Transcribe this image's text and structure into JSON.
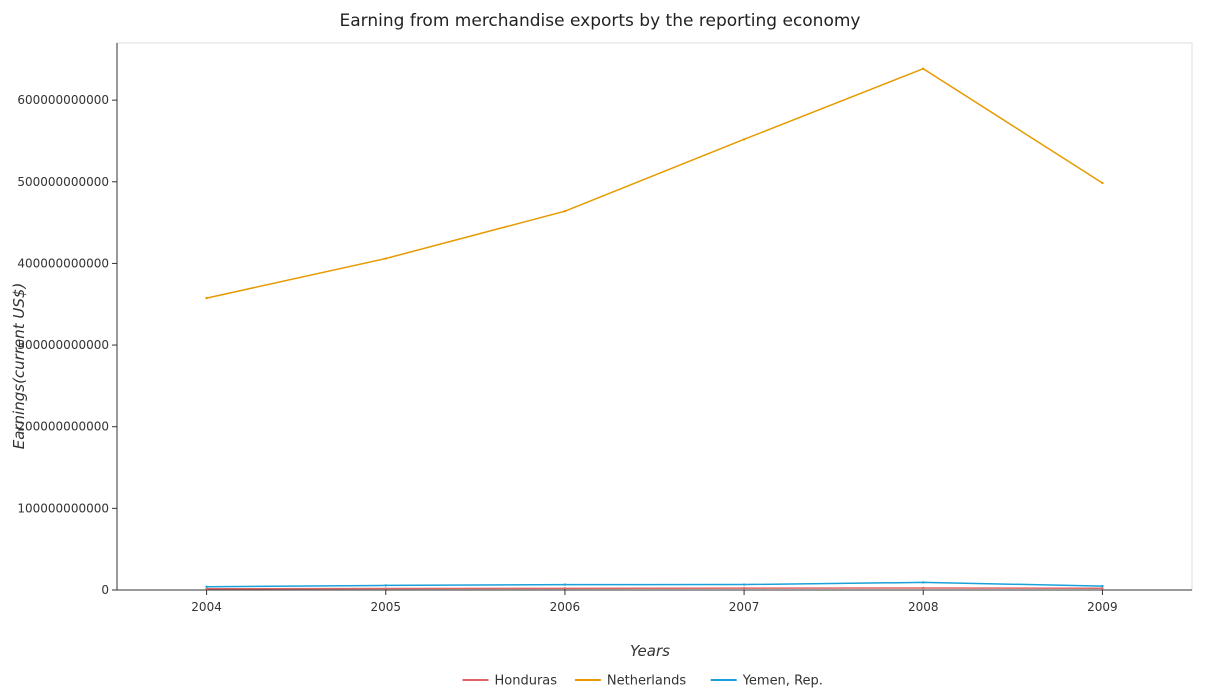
{
  "chart_data": {
    "type": "line",
    "title": "Earning from merchandise exports by the reporting economy",
    "xlabel": "Years",
    "ylabel": "Earnings(current US$)",
    "categories": [
      "2004",
      "2005",
      "2006",
      "2007",
      "2008",
      "2009"
    ],
    "ylim": [
      0,
      670000000000
    ],
    "yticks": [
      0,
      100000000000,
      200000000000,
      300000000000,
      400000000000,
      500000000000,
      600000000000
    ],
    "ytick_labels": [
      "0",
      "100000000000",
      "200000000000",
      "300000000000",
      "400000000000",
      "500000000000",
      "600000000000"
    ],
    "grid": false,
    "legend_position": "bottom",
    "series": [
      {
        "name": "Honduras",
        "color": "#e06666",
        "values": [
          1500000000,
          1800000000,
          2000000000,
          2300000000,
          2500000000,
          2100000000
        ]
      },
      {
        "name": "Netherlands",
        "color": "#e69a00",
        "values": [
          357500000000,
          406000000000,
          464000000000,
          552000000000,
          638500000000,
          498500000000
        ]
      },
      {
        "name": "Yemen, Rep.",
        "color": "#1ba1d9",
        "values": [
          4000000000,
          5600000000,
          6600000000,
          6700000000,
          9300000000,
          4800000000
        ]
      }
    ]
  }
}
